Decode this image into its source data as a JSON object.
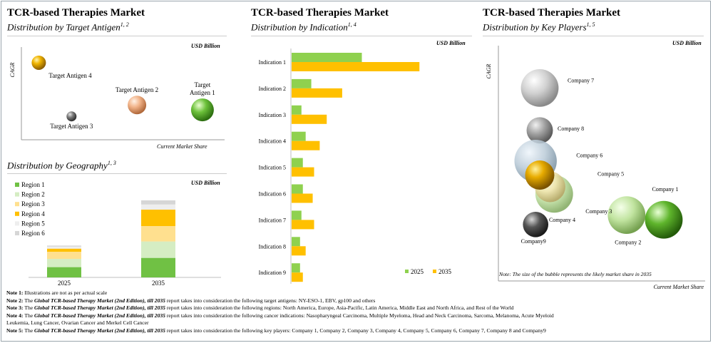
{
  "panel_antigen": {
    "title": "TCR-based Therapies Market",
    "subtitle": "Distribution by Target Antigen",
    "sup": "1, 2",
    "unit": "USD Billion",
    "ylabel": "CAGR",
    "xlabel": "Current  Market Share",
    "colors": {
      "gold": "#f0b400",
      "peach": "#f2b48a",
      "grey": "#7a7a7a",
      "green": "#6cc13a"
    }
  },
  "panel_geography": {
    "subtitle": "Distribution by Geography",
    "sup": "1, 3",
    "unit": "USD Billion"
  },
  "panel_indication": {
    "title": "TCR-based Therapies Market",
    "subtitle": "Distribution by Indication",
    "sup": "1, 4",
    "unit": "USD Billion",
    "legend": [
      "2025",
      "2035"
    ],
    "colors": {
      "2025": "#8fd14f",
      "2035": "#ffc000"
    }
  },
  "panel_players": {
    "title": "TCR-based Therapies Market",
    "subtitle": "Distribution by Key Players",
    "sup": "1, 5",
    "unit": "USD Billion",
    "ylabel": "CAGR",
    "xlabel": "Current Market Share",
    "note": "Note: The size of the bubble represents the likely market share in 2035"
  },
  "notes": [
    {
      "label": "Note 1:",
      "pre": "Illustrations are not as per actual scale",
      "report": "",
      "post": ""
    },
    {
      "label": "Note 2:",
      "pre": "The ",
      "report": "Global TCR-based Therapy Market (2nd Edition), till 2035",
      "post": " report takes into consideration the following target antigens: NY-ESO-1, EBV, gp100 and others"
    },
    {
      "label": "Note 3:",
      "pre": "The ",
      "report": "Global TCR-based Therapy Market (2nd Edition), till 2035",
      "post": " report takes into consideration the following regions: North America, Europe, Asia-Pacific, Latin America, Middle East and North Africa, and Rest of the World"
    },
    {
      "label": "Note 4:",
      "pre": "The ",
      "report": "Global TCR-based Therapy Market (2nd Edition), till 2035",
      "post": " report takes into consideration the following cancer indications: Nasopharyngeal Carcinoma, Multiple Myeloma, Head and Neck Carcinoma, Sarcoma, Melanoma, Acute Myeloid"
    },
    {
      "label": "",
      "pre": "Leukemia, Lung Cancer, Ovarian Cancer and Merkel Cell Cancer",
      "report": "",
      "post": ""
    },
    {
      "label": "Note 5:",
      "pre": "The ",
      "report": "Global TCR-based Therapy Market (2nd Edition), till 2035",
      "post": " report takes into consideration the following key players: Company 1, Company 2, Company 3, Company 4, Company 5, Company 6, Company 7, Company 8 and Company9"
    }
  ],
  "chart_data": [
    {
      "type": "scatter",
      "title": "Distribution by Target Antigen",
      "xlabel": "Current  Market Share",
      "ylabel": "CAGR",
      "points": [
        {
          "name": "Target Antigen 4",
          "label_lines": [
            "Target Antigen 4"
          ],
          "x": 0.08,
          "y": 0.86,
          "color": "gold"
        },
        {
          "name": "Target Antigen 2",
          "label_lines": [
            "Target Antigen 2"
          ],
          "x": 0.62,
          "y": 0.34,
          "color": "peach"
        },
        {
          "name": "Target Antigen 3",
          "label_lines": [
            "Target Antigen 3"
          ],
          "x": 0.26,
          "y": 0.2,
          "color": "grey"
        },
        {
          "name": "Target Antigen 1",
          "label_lines": [
            "Target",
            "Antigen 1"
          ],
          "x": 0.98,
          "y": 0.28,
          "color": "green"
        }
      ]
    },
    {
      "type": "bar",
      "stacked": true,
      "title": "Distribution by Geography",
      "categories": [
        "2025",
        "2035"
      ],
      "series": [
        {
          "name": "Region  1",
          "color": "#70c144",
          "values": [
            10,
            19
          ]
        },
        {
          "name": "Region  2",
          "color": "#d5edc3",
          "values": [
            8,
            16
          ]
        },
        {
          "name": "Region  3",
          "color": "#ffe08f",
          "values": [
            7,
            15
          ]
        },
        {
          "name": "Region  4",
          "color": "#ffc000",
          "values": [
            3,
            16
          ]
        },
        {
          "name": "Region  5",
          "color": "#eeeeee",
          "values": [
            2,
            5
          ]
        },
        {
          "name": "Region  6",
          "color": "#d6d6d6",
          "values": [
            1,
            4
          ]
        }
      ]
    },
    {
      "type": "bar",
      "orientation": "horizontal",
      "title": "Distribution by Indication",
      "categories": [
        "Indication 1",
        "Indication 2",
        "Indication 3",
        "Indication 4",
        "Indication 5",
        "Indication 6",
        "Indication 7",
        "Indication 8",
        "Indication 9"
      ],
      "series": [
        {
          "name": "2025",
          "values": [
            50,
            14,
            7,
            10,
            8,
            8,
            7,
            6,
            6
          ]
        },
        {
          "name": "2035",
          "values": [
            91,
            36,
            25,
            20,
            16,
            15,
            16,
            10,
            8
          ]
        }
      ],
      "xlim": [
        0,
        100
      ]
    },
    {
      "type": "scatter",
      "subtype": "bubble",
      "title": "Distribution by Key Players",
      "xlabel": "Current Market Share",
      "ylabel": "CAGR",
      "points": [
        {
          "name": "Company 7",
          "x": 0.2,
          "y": 0.82,
          "size": 0.8,
          "style": "silver"
        },
        {
          "name": "Company 8",
          "x": 0.2,
          "y": 0.64,
          "size": 0.56,
          "style": "grey"
        },
        {
          "name": "Company 6",
          "x": 0.18,
          "y": 0.51,
          "size": 0.9,
          "style": "bluegrey"
        },
        {
          "name": "Company 5",
          "x": 0.2,
          "y": 0.45,
          "size": 0.62,
          "style": "gold"
        },
        {
          "name": "Company 3",
          "x": 0.27,
          "y": 0.37,
          "size": 0.8,
          "style": "lightgreen"
        },
        {
          "name": "Company 4",
          "x": 0.25,
          "y": 0.4,
          "size": 0.65,
          "style": "paleyellow"
        },
        {
          "name": "Company9",
          "x": 0.18,
          "y": 0.24,
          "size": 0.54,
          "style": "darkgrey"
        },
        {
          "name": "Company 2",
          "x": 0.62,
          "y": 0.28,
          "size": 0.8,
          "style": "lightgreen"
        },
        {
          "name": "Company 1",
          "x": 0.8,
          "y": 0.26,
          "size": 0.8,
          "style": "green"
        }
      ]
    }
  ]
}
